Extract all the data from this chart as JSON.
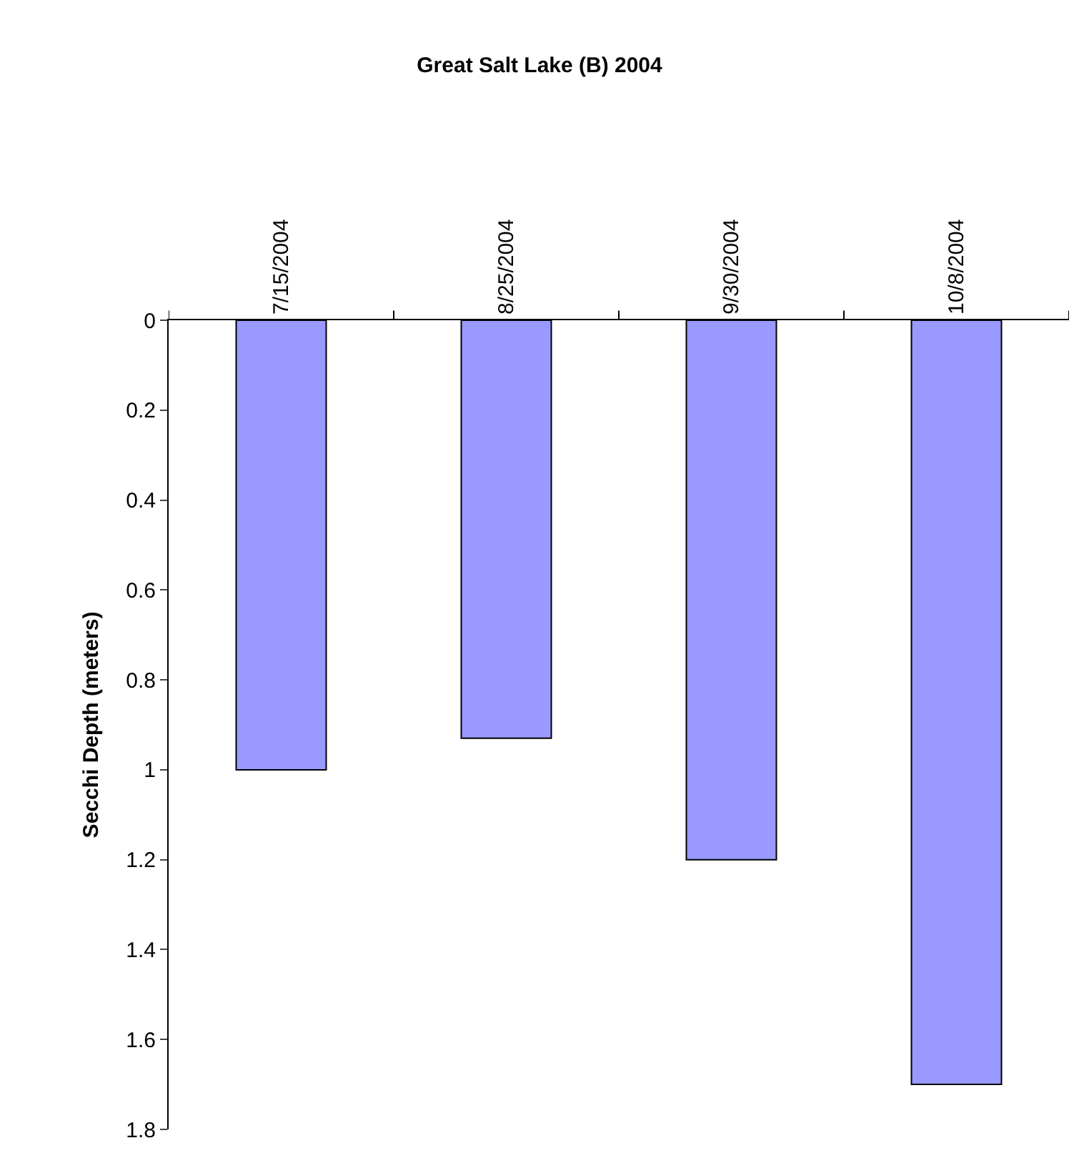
{
  "chart_data": {
    "type": "bar",
    "title": "Great Salt Lake (B) 2004",
    "ylabel": "Secchi Depth (meters)",
    "categories": [
      "7/15/2004",
      "8/25/2004",
      "9/30/2004",
      "10/8/2004"
    ],
    "values": [
      1.0,
      0.93,
      1.2,
      1.7
    ],
    "color": "#9999ff",
    "ylim": [
      1.8,
      0
    ],
    "yticks": [
      0,
      0.2,
      0.4,
      0.6,
      0.8,
      1,
      1.2,
      1.4,
      1.6,
      1.8
    ]
  }
}
